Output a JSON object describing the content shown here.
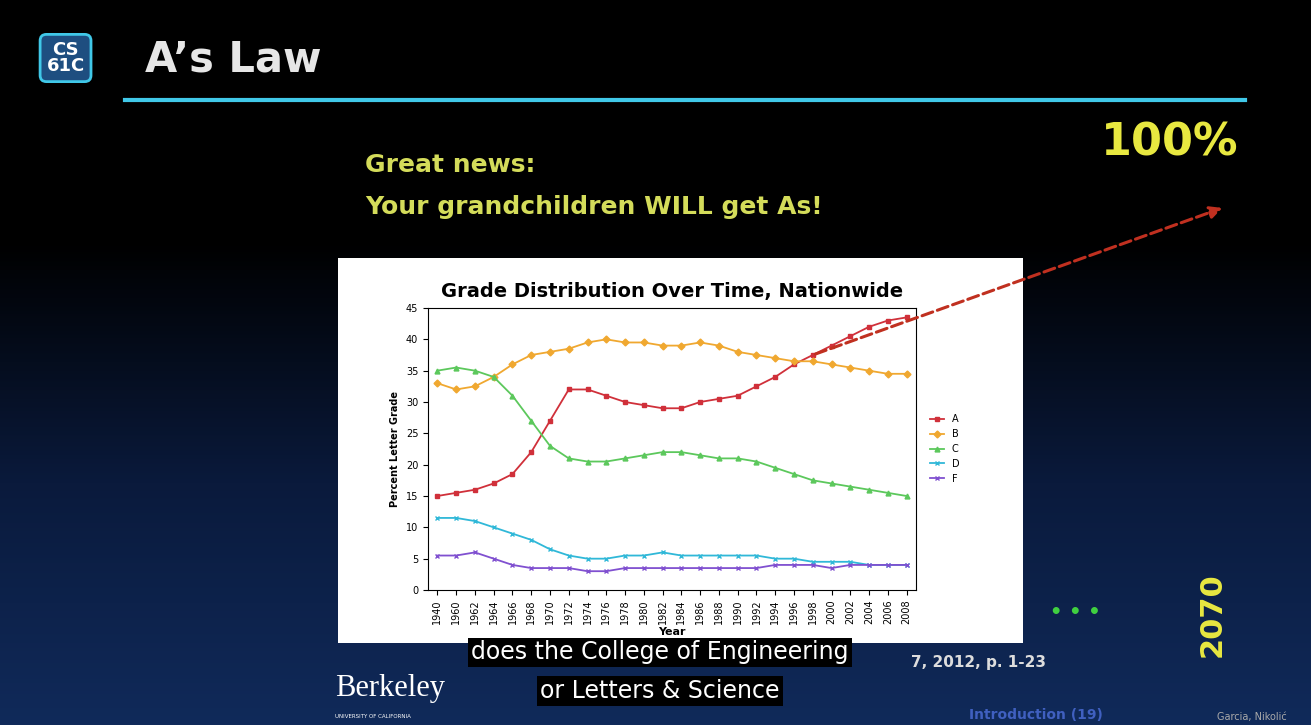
{
  "slide": {
    "logo": [
      "CS",
      "61C"
    ],
    "title": "A’s Law",
    "headline": [
      "Great news:",
      "Your grandchildren WILL get As!"
    ],
    "target_label": "100%",
    "target_year": "2070",
    "dots": "• • •",
    "caption": [
      "does the College of Engineering",
      "or Letters & Science"
    ],
    "footer": {
      "university": "Berkeley",
      "university_sub": "UNIVERSITY OF CALIFORNIA",
      "citation": "7, 2012, p. 1-23",
      "section": "Introduction (19)",
      "authors": "Garcia, Nikolić"
    }
  },
  "chart_data": {
    "type": "line",
    "title": "Grade Distribution Over Time, Nationwide",
    "x_label": "Year",
    "y_label": "Percent Letter Grade",
    "categories": [
      "1940",
      "1960",
      "1962",
      "1964",
      "1966",
      "1968",
      "1970",
      "1972",
      "1974",
      "1976",
      "1978",
      "1980",
      "1982",
      "1984",
      "1986",
      "1988",
      "1990",
      "1992",
      "1994",
      "1996",
      "1998",
      "2000",
      "2002",
      "2004",
      "2006",
      "2008"
    ],
    "series": [
      {
        "name": "A",
        "color": "#d0303a",
        "marker": "square",
        "values": [
          15,
          15.5,
          16,
          17,
          18.5,
          22,
          27,
          32,
          32,
          31,
          30,
          29.5,
          29,
          29,
          30,
          30.5,
          31,
          32.5,
          34,
          36,
          37.5,
          39,
          40.5,
          42,
          43,
          43.5
        ]
      },
      {
        "name": "B",
        "color": "#f0a830",
        "marker": "diamond",
        "values": [
          33,
          32,
          32.5,
          34,
          36,
          37.5,
          38,
          38.5,
          39.5,
          40,
          39.5,
          39.5,
          39,
          39,
          39.5,
          39,
          38,
          37.5,
          37,
          36.5,
          36.5,
          36,
          35.5,
          35,
          34.5,
          34.5
        ]
      },
      {
        "name": "C",
        "color": "#5cc85c",
        "marker": "triangle",
        "values": [
          35,
          35.5,
          35,
          34,
          31,
          27,
          23,
          21,
          20.5,
          20.5,
          21,
          21.5,
          22,
          22,
          21.5,
          21,
          21,
          20.5,
          19.5,
          18.5,
          17.5,
          17,
          16.5,
          16,
          15.5,
          15
        ]
      },
      {
        "name": "D",
        "color": "#30b8d8",
        "marker": "x",
        "values": [
          11.5,
          11.5,
          11,
          10,
          9,
          8,
          6.5,
          5.5,
          5,
          5,
          5.5,
          5.5,
          6,
          5.5,
          5.5,
          5.5,
          5.5,
          5.5,
          5,
          5,
          4.5,
          4.5,
          4.5,
          4,
          4,
          4
        ]
      },
      {
        "name": "F",
        "color": "#8050d0",
        "marker": "x",
        "values": [
          5.5,
          5.5,
          6,
          5,
          4,
          3.5,
          3.5,
          3.5,
          3,
          3,
          3.5,
          3.5,
          3.5,
          3.5,
          3.5,
          3.5,
          3.5,
          3.5,
          4,
          4,
          4,
          3.5,
          4,
          4,
          4,
          4
        ]
      }
    ],
    "ylim": [
      0,
      45
    ],
    "yticks": [
      0,
      5,
      10,
      15,
      20,
      25,
      30,
      35,
      40,
      45
    ],
    "grid": false,
    "legend": "right"
  }
}
